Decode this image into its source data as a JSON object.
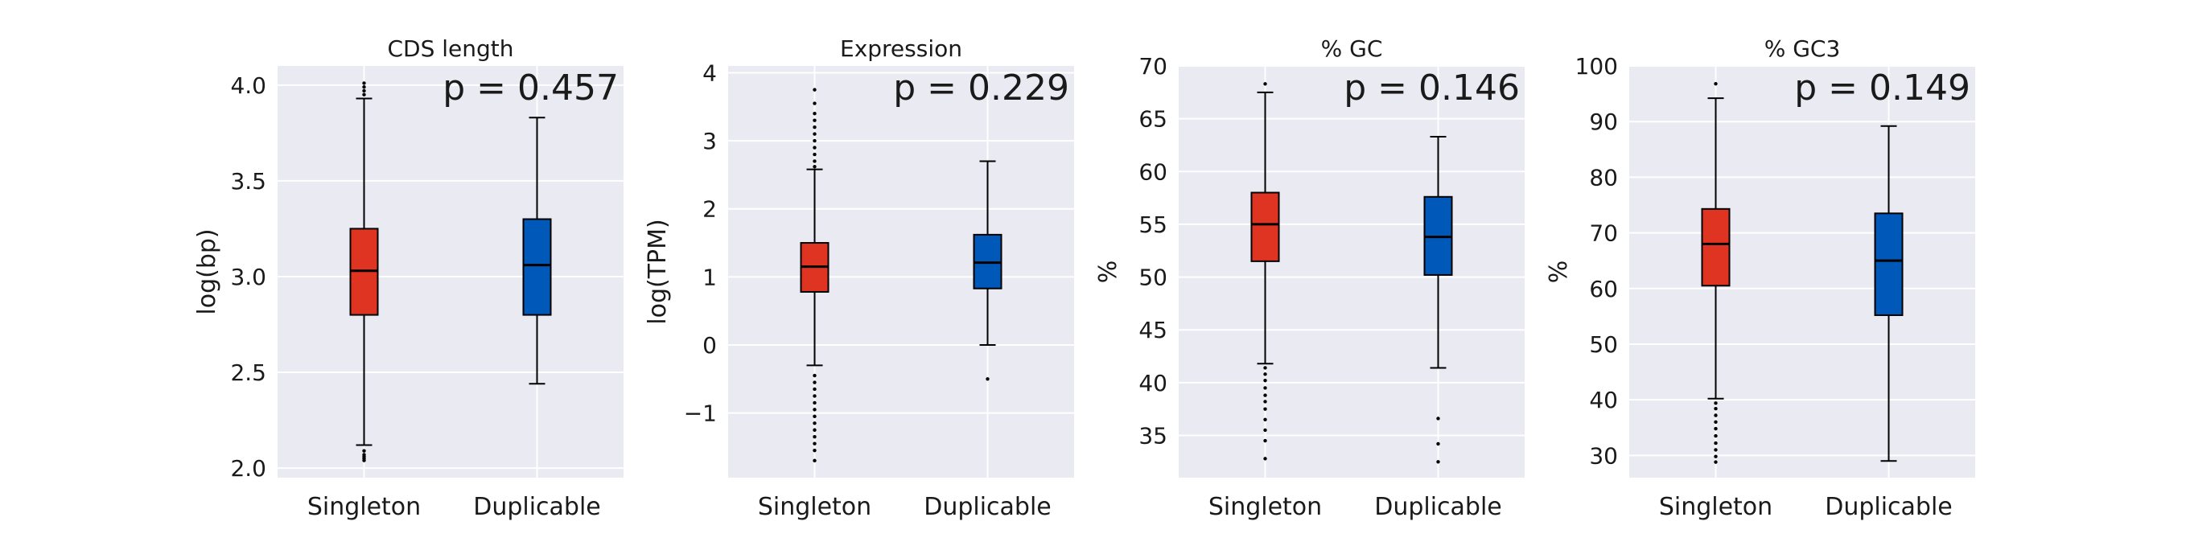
{
  "chart_data": [
    {
      "type": "box",
      "title": "CDS length",
      "ylabel": "log(bp)",
      "ylim": [
        1.95,
        4.1
      ],
      "yticks": [
        2.0,
        2.5,
        3.0,
        3.5,
        4.0
      ],
      "ytick_labels": [
        "2.0",
        "2.5",
        "3.0",
        "3.5",
        "4.0"
      ],
      "annotation": "p = 0.457",
      "grid": true,
      "categories": [
        "Singleton",
        "Duplicable"
      ],
      "boxes": [
        {
          "color": "#E03423",
          "q1": 2.8,
          "median": 3.03,
          "q3": 3.25,
          "whisker_low": 2.12,
          "whisker_high": 3.93,
          "outliers": [
            2.04,
            2.05,
            2.06,
            2.07,
            2.09,
            3.95,
            3.97,
            3.99,
            4.01
          ]
        },
        {
          "color": "#0059B8",
          "q1": 2.8,
          "median": 3.06,
          "q3": 3.3,
          "whisker_low": 2.44,
          "whisker_high": 3.83,
          "outliers": []
        }
      ]
    },
    {
      "type": "box",
      "title": "Expression",
      "ylabel": "log(TPM)",
      "ylim": [
        -1.95,
        4.1
      ],
      "yticks": [
        -1,
        0,
        1,
        2,
        3,
        4
      ],
      "ytick_labels": [
        "−1",
        "0",
        "1",
        "2",
        "3",
        "4"
      ],
      "annotation": "p = 0.229",
      "grid": true,
      "categories": [
        "Singleton",
        "Duplicable"
      ],
      "boxes": [
        {
          "color": "#E03423",
          "q1": 0.78,
          "median": 1.15,
          "q3": 1.5,
          "whisker_low": -0.3,
          "whisker_high": 2.58,
          "outliers": [
            -0.45,
            -0.55,
            -0.65,
            -0.75,
            -0.85,
            -0.95,
            -1.05,
            -1.15,
            -1.25,
            -1.35,
            -1.45,
            -1.55,
            -1.7,
            2.62,
            2.7,
            2.8,
            2.9,
            3.0,
            3.1,
            3.2,
            3.3,
            3.4,
            3.55,
            3.75
          ]
        },
        {
          "color": "#0059B8",
          "q1": 0.83,
          "median": 1.21,
          "q3": 1.62,
          "whisker_low": 0.0,
          "whisker_high": 2.7,
          "outliers": [
            -0.5
          ]
        }
      ]
    },
    {
      "type": "box",
      "title": "% GC",
      "ylabel": "%",
      "ylim": [
        31,
        70
      ],
      "yticks": [
        35,
        40,
        45,
        50,
        55,
        60,
        65,
        70
      ],
      "ytick_labels": [
        "35",
        "40",
        "45",
        "50",
        "55",
        "60",
        "65",
        "70"
      ],
      "annotation": "p = 0.146",
      "grid": true,
      "categories": [
        "Singleton",
        "Duplicable"
      ],
      "boxes": [
        {
          "color": "#E03423",
          "q1": 51.5,
          "median": 55.0,
          "q3": 58.0,
          "whisker_low": 41.8,
          "whisker_high": 67.5,
          "outliers": [
            32.8,
            34.5,
            35.5,
            36.5,
            37.5,
            38.2,
            38.8,
            39.5,
            40.2,
            40.8,
            41.4,
            68.3
          ]
        },
        {
          "color": "#0059B8",
          "q1": 50.2,
          "median": 53.8,
          "q3": 57.6,
          "whisker_low": 41.4,
          "whisker_high": 63.3,
          "outliers": [
            32.5,
            34.2,
            36.6
          ]
        }
      ]
    },
    {
      "type": "box",
      "title": "% GC3",
      "ylabel": "%",
      "ylim": [
        26,
        100
      ],
      "yticks": [
        30,
        40,
        50,
        60,
        70,
        80,
        90,
        100
      ],
      "ytick_labels": [
        "30",
        "40",
        "50",
        "60",
        "70",
        "80",
        "90",
        "100"
      ],
      "annotation": "p = 0.149",
      "grid": true,
      "categories": [
        "Singleton",
        "Duplicable"
      ],
      "boxes": [
        {
          "color": "#E03423",
          "q1": 60.5,
          "median": 68.0,
          "q3": 74.3,
          "whisker_low": 40.2,
          "whisker_high": 94.2,
          "outliers": [
            28.8,
            29.8,
            31.0,
            32.2,
            33.5,
            34.8,
            36.0,
            37.2,
            38.4,
            39.4,
            96.8
          ]
        },
        {
          "color": "#0059B8",
          "q1": 55.2,
          "median": 65.0,
          "q3": 73.5,
          "whisker_low": 29.0,
          "whisker_high": 89.2,
          "outliers": []
        }
      ]
    }
  ]
}
